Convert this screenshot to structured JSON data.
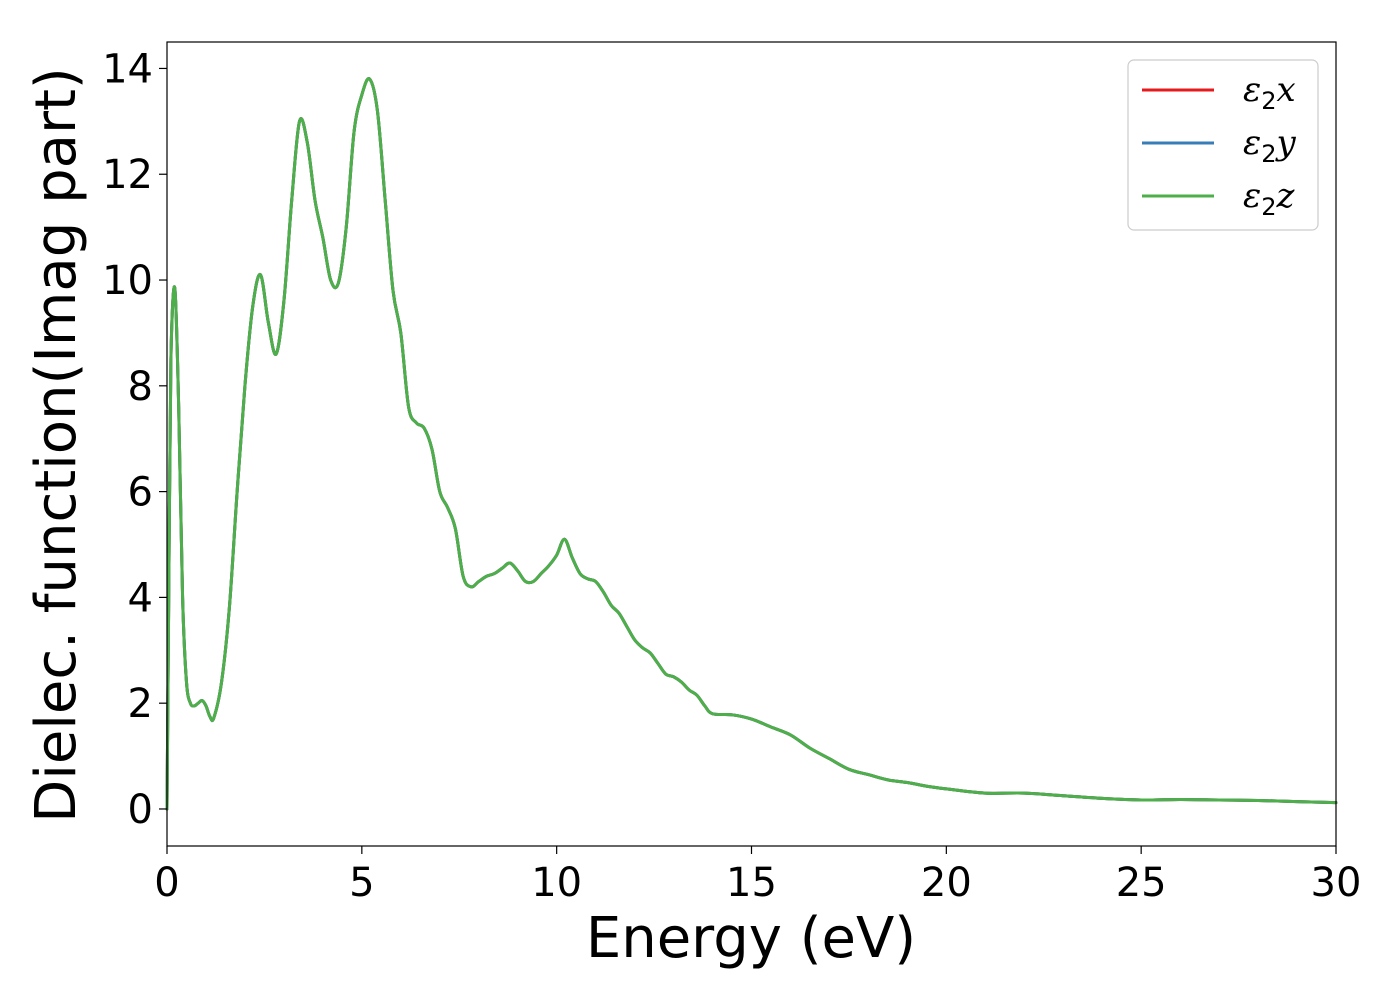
{
  "chart_data": {
    "type": "line",
    "title": "",
    "xlabel": "Energy (eV)",
    "ylabel": "Dielec. function(Imag part)",
    "xlim": [
      0,
      30
    ],
    "ylim": [
      -0.7,
      14.5
    ],
    "xticks": [
      0,
      5,
      10,
      15,
      20,
      25,
      30
    ],
    "yticks": [
      0,
      2,
      4,
      6,
      8,
      10,
      12,
      14
    ],
    "grid": false,
    "legend_position": "top-right",
    "colors": {
      "x": "#e41a1c",
      "y": "#377eb8",
      "z": "#4daf4a"
    },
    "legend": [
      {
        "base": "ε",
        "sub": "2",
        "axis": "x",
        "color": "#e41a1c"
      },
      {
        "base": "ε",
        "sub": "2",
        "axis": "y",
        "color": "#377eb8"
      },
      {
        "base": "ε",
        "sub": "2",
        "axis": "z",
        "color": "#4daf4a"
      }
    ],
    "x": [
      0,
      0.05,
      0.1,
      0.2,
      0.3,
      0.4,
      0.5,
      0.6,
      0.7,
      0.8,
      0.9,
      1.0,
      1.1,
      1.2,
      1.4,
      1.6,
      1.8,
      2.0,
      2.2,
      2.4,
      2.6,
      2.8,
      3.0,
      3.2,
      3.4,
      3.6,
      3.8,
      4.0,
      4.2,
      4.4,
      4.6,
      4.8,
      5.0,
      5.2,
      5.4,
      5.6,
      5.8,
      6.0,
      6.2,
      6.4,
      6.6,
      6.8,
      7.0,
      7.2,
      7.4,
      7.6,
      7.8,
      8.0,
      8.2,
      8.4,
      8.6,
      8.8,
      9.0,
      9.2,
      9.4,
      9.6,
      9.8,
      10.0,
      10.2,
      10.4,
      10.6,
      10.8,
      11.0,
      11.2,
      11.4,
      11.6,
      11.8,
      12.0,
      12.2,
      12.4,
      12.6,
      12.8,
      13.0,
      13.2,
      13.4,
      13.6,
      13.8,
      14.0,
      14.5,
      15.0,
      15.5,
      16.0,
      16.5,
      17.0,
      17.5,
      18.0,
      18.5,
      19.0,
      19.5,
      20.0,
      21.0,
      22.0,
      23.0,
      24.0,
      25.0,
      26.0,
      27.0,
      28.0,
      29.0,
      30.0
    ],
    "series": [
      {
        "name": "ε2x",
        "color": "#e41a1c",
        "y": [
          0,
          4.5,
          8.5,
          9.85,
          7.6,
          4.0,
          2.4,
          2.0,
          1.95,
          2.0,
          2.05,
          1.95,
          1.75,
          1.72,
          2.4,
          3.8,
          6.0,
          8.0,
          9.5,
          10.1,
          9.2,
          8.6,
          9.6,
          11.5,
          13.0,
          12.6,
          11.5,
          10.8,
          10.0,
          9.95,
          11.0,
          12.8,
          13.5,
          13.8,
          13.2,
          11.5,
          9.8,
          9.0,
          7.6,
          7.3,
          7.2,
          6.8,
          6.0,
          5.7,
          5.3,
          4.4,
          4.2,
          4.3,
          4.4,
          4.45,
          4.55,
          4.65,
          4.5,
          4.3,
          4.3,
          4.45,
          4.6,
          4.8,
          5.1,
          4.75,
          4.45,
          4.35,
          4.3,
          4.1,
          3.85,
          3.7,
          3.45,
          3.2,
          3.05,
          2.95,
          2.75,
          2.55,
          2.5,
          2.4,
          2.25,
          2.15,
          1.95,
          1.8,
          1.78,
          1.7,
          1.55,
          1.4,
          1.15,
          0.95,
          0.75,
          0.65,
          0.55,
          0.5,
          0.43,
          0.38,
          0.3,
          0.3,
          0.25,
          0.2,
          0.17,
          0.18,
          0.17,
          0.16,
          0.14,
          0.12
        ]
      },
      {
        "name": "ε2y",
        "color": "#377eb8",
        "y": [
          0,
          4.5,
          8.5,
          9.85,
          7.6,
          4.0,
          2.4,
          2.0,
          1.95,
          2.0,
          2.05,
          1.95,
          1.75,
          1.72,
          2.4,
          3.8,
          6.0,
          8.0,
          9.5,
          10.1,
          9.2,
          8.6,
          9.6,
          11.5,
          13.0,
          12.6,
          11.5,
          10.8,
          10.0,
          9.95,
          11.0,
          12.8,
          13.5,
          13.8,
          13.2,
          11.5,
          9.8,
          9.0,
          7.6,
          7.3,
          7.2,
          6.8,
          6.0,
          5.7,
          5.3,
          4.4,
          4.2,
          4.3,
          4.4,
          4.45,
          4.55,
          4.65,
          4.5,
          4.3,
          4.3,
          4.45,
          4.6,
          4.8,
          5.1,
          4.75,
          4.45,
          4.35,
          4.3,
          4.1,
          3.85,
          3.7,
          3.45,
          3.2,
          3.05,
          2.95,
          2.75,
          2.55,
          2.5,
          2.4,
          2.25,
          2.15,
          1.95,
          1.8,
          1.78,
          1.7,
          1.55,
          1.4,
          1.15,
          0.95,
          0.75,
          0.65,
          0.55,
          0.5,
          0.43,
          0.38,
          0.3,
          0.3,
          0.25,
          0.2,
          0.17,
          0.18,
          0.17,
          0.16,
          0.14,
          0.12
        ]
      },
      {
        "name": "ε2z",
        "color": "#4daf4a",
        "y": [
          0,
          4.5,
          8.5,
          9.85,
          7.6,
          4.0,
          2.4,
          2.0,
          1.95,
          2.0,
          2.05,
          1.95,
          1.75,
          1.72,
          2.4,
          3.8,
          6.0,
          8.0,
          9.5,
          10.1,
          9.2,
          8.6,
          9.6,
          11.5,
          13.0,
          12.6,
          11.5,
          10.8,
          10.0,
          9.95,
          11.0,
          12.8,
          13.5,
          13.8,
          13.2,
          11.5,
          9.8,
          9.0,
          7.6,
          7.3,
          7.2,
          6.8,
          6.0,
          5.7,
          5.3,
          4.4,
          4.2,
          4.3,
          4.4,
          4.45,
          4.55,
          4.65,
          4.5,
          4.3,
          4.3,
          4.45,
          4.6,
          4.8,
          5.1,
          4.75,
          4.45,
          4.35,
          4.3,
          4.1,
          3.85,
          3.7,
          3.45,
          3.2,
          3.05,
          2.95,
          2.75,
          2.55,
          2.5,
          2.4,
          2.25,
          2.15,
          1.95,
          1.8,
          1.78,
          1.7,
          1.55,
          1.4,
          1.15,
          0.95,
          0.75,
          0.65,
          0.55,
          0.5,
          0.43,
          0.38,
          0.3,
          0.3,
          0.25,
          0.2,
          0.17,
          0.18,
          0.17,
          0.16,
          0.14,
          0.12
        ]
      }
    ]
  }
}
